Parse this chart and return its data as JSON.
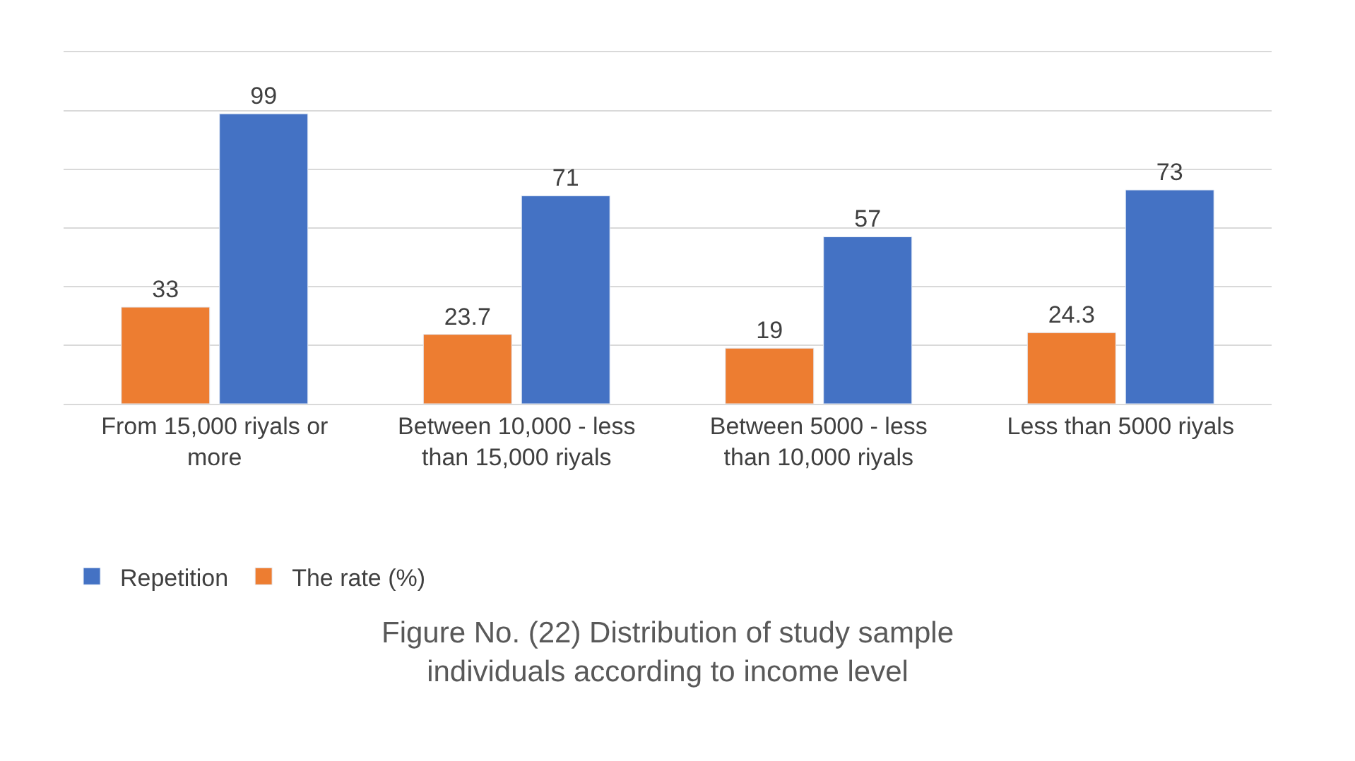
{
  "chart_data": {
    "type": "bar",
    "categories": [
      "From 15,000 riyals or more",
      "Between 10,000 - less than 15,000 riyals",
      "Between 5000 - less than 10,000 riyals",
      "Less than 5000 riyals"
    ],
    "series": [
      {
        "name": "The rate (%)",
        "color": "#ed7d31",
        "values": [
          33,
          23.7,
          19,
          24.3
        ]
      },
      {
        "name": "Repetition",
        "color": "#4472c4",
        "values": [
          99,
          71,
          57,
          73
        ]
      }
    ],
    "ylim": [
      0,
      120
    ],
    "yticks": [
      {
        "value": 0,
        "label": null
      },
      {
        "value": 20,
        "label": null
      },
      {
        "value": 40,
        "label": null
      },
      {
        "value": 60,
        "label": null
      },
      {
        "value": 80,
        "label": null
      },
      {
        "value": 100,
        "label": null
      },
      {
        "value": 120,
        "label": null
      }
    ],
    "grid": "y",
    "data_labels": true,
    "legend": "bottom left",
    "annotations": [
      "Figure No. (22) Distribution of study sample individuals according to income level"
    ]
  }
}
